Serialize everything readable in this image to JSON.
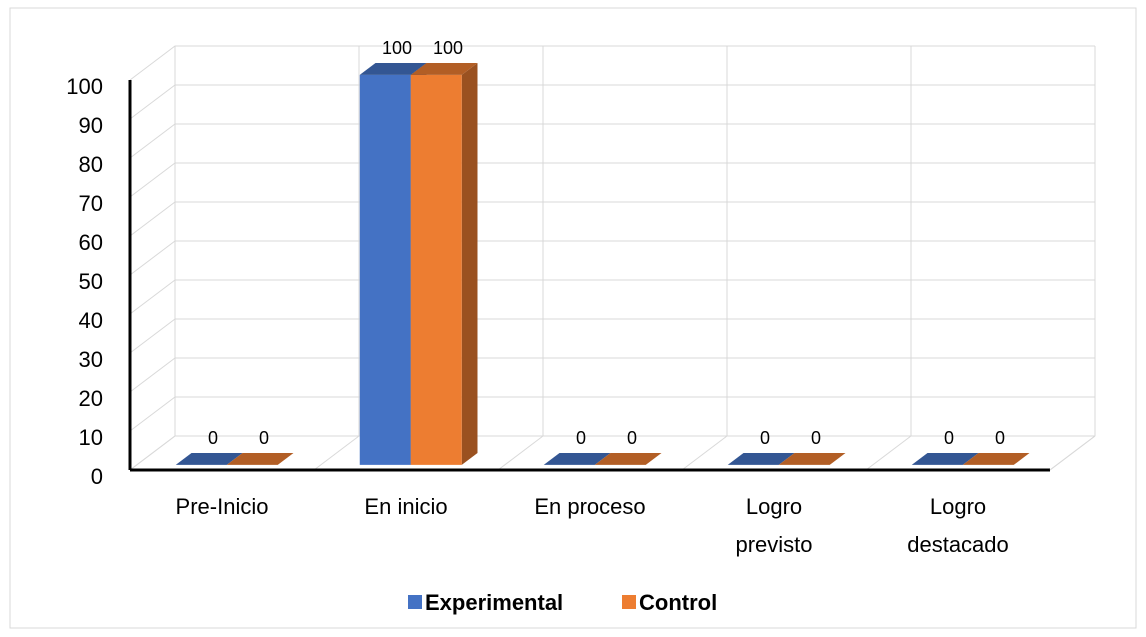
{
  "chart_data": {
    "type": "bar3d",
    "categories": [
      "Pre-Inicio",
      "En inicio",
      "En proceso",
      "Logro previsto",
      "Logro destacado"
    ],
    "series": [
      {
        "name": "Experimental",
        "color": "#4472c4",
        "values": [
          0,
          100,
          0,
          0,
          0
        ]
      },
      {
        "name": "Control",
        "color": "#ed7d31",
        "values": [
          0,
          100,
          0,
          0,
          0
        ]
      }
    ],
    "ylim": [
      0,
      100
    ],
    "yticks": [
      0,
      10,
      20,
      30,
      40,
      50,
      60,
      70,
      80,
      90,
      100
    ],
    "grid": true,
    "legend": "bottom",
    "data_labels": true
  }
}
